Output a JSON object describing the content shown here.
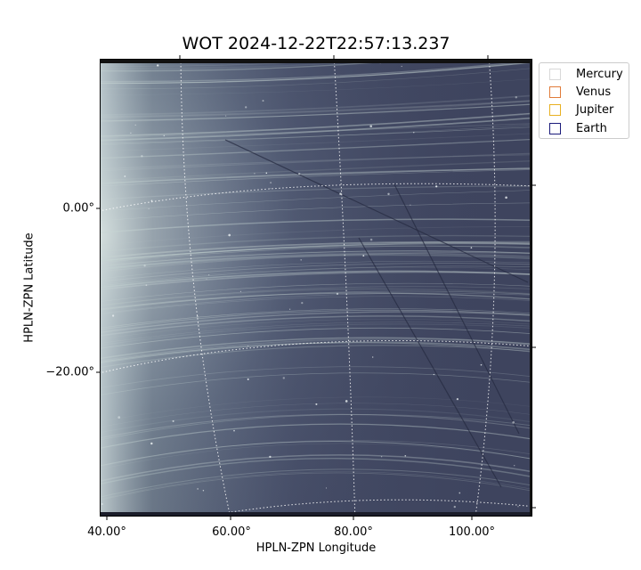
{
  "title": "WOT 2024-12-22T22:57:13.237",
  "xlabel": "HPLN-ZPN Longitude",
  "ylabel": "HPLN-ZPN Latitude",
  "x_ticks": [
    "40.00°",
    "60.00°",
    "80.00°",
    "100.00°"
  ],
  "y_ticks": [
    "0.00°",
    "−20.00°"
  ],
  "legend": [
    {
      "label": "Mercury",
      "color": "#d8d8d8"
    },
    {
      "label": "Venus",
      "color": "#e07b39"
    },
    {
      "label": "Jupiter",
      "color": "#e8b020"
    },
    {
      "label": "Earth",
      "color": "#1a1a7a"
    }
  ],
  "image_colors": {
    "background": "#3c4260",
    "streak": "#c8d6d4",
    "grid": "#ffffff",
    "border": "#111111"
  }
}
